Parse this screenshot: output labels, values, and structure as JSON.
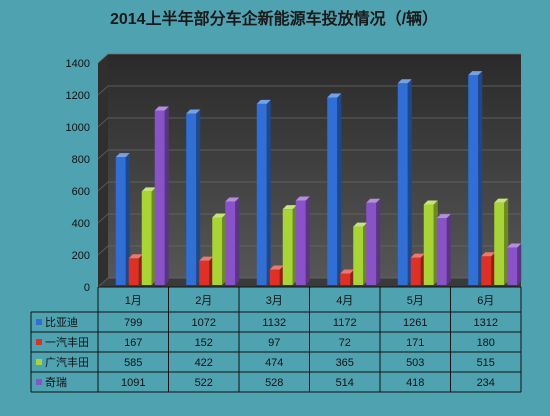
{
  "chart_data": {
    "type": "bar",
    "title": "2014上半年部分车企新能源车投放情况（/辆）",
    "categories": [
      "1月",
      "2月",
      "3月",
      "4月",
      "5月",
      "6月"
    ],
    "series": [
      {
        "name": "比亚迪",
        "values": [
          799,
          1072,
          1132,
          1172,
          1261,
          1312
        ],
        "color": "#2f6fd6"
      },
      {
        "name": "一汽丰田",
        "values": [
          167,
          152,
          97,
          72,
          171,
          180
        ],
        "color": "#e03024"
      },
      {
        "name": "广汽丰田",
        "values": [
          585,
          422,
          474,
          365,
          503,
          515
        ],
        "color": "#a8d534"
      },
      {
        "name": "奇瑞",
        "values": [
          1091,
          522,
          528,
          514,
          418,
          234
        ],
        "color": "#8a52c9"
      }
    ],
    "yticks": [
      "0",
      "200",
      "400",
      "600",
      "800",
      "1000",
      "1200",
      "1400"
    ],
    "ylim": [
      0,
      1400
    ],
    "grid": true,
    "legend": "data-table",
    "xlabel": "",
    "ylabel": ""
  }
}
